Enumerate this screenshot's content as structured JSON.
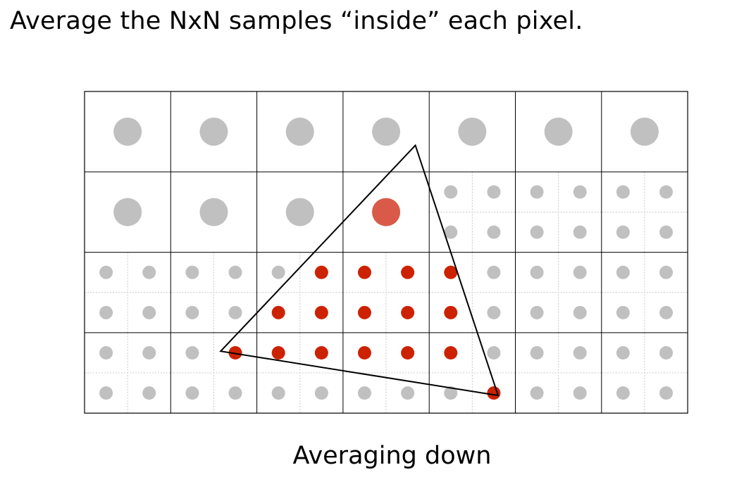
{
  "heading": "Average the NxN samples “inside” each pixel.",
  "caption": "Averaging down",
  "grid": {
    "cols": 7,
    "rows": 4
  },
  "colors": {
    "sample_outside": "#c0c0c0",
    "sample_inside": "#cc2200",
    "pixel_averaged_partial": "#d95a48",
    "grid_line": "#000000",
    "subgrid_line": "#c8c8c8",
    "triangle_edge": "#000000"
  },
  "pixels": [
    {
      "row": 0,
      "col": 0,
      "state": "averaged",
      "coverage": 0
    },
    {
      "row": 0,
      "col": 1,
      "state": "averaged",
      "coverage": 0
    },
    {
      "row": 0,
      "col": 2,
      "state": "averaged",
      "coverage": 0
    },
    {
      "row": 0,
      "col": 3,
      "state": "averaged",
      "coverage": 0
    },
    {
      "row": 0,
      "col": 4,
      "state": "averaged",
      "coverage": 0
    },
    {
      "row": 0,
      "col": 5,
      "state": "averaged",
      "coverage": 0
    },
    {
      "row": 0,
      "col": 6,
      "state": "averaged",
      "coverage": 0
    },
    {
      "row": 1,
      "col": 0,
      "state": "averaged",
      "coverage": 0
    },
    {
      "row": 1,
      "col": 1,
      "state": "averaged",
      "coverage": 0
    },
    {
      "row": 1,
      "col": 2,
      "state": "averaged",
      "coverage": 0
    },
    {
      "row": 1,
      "col": 3,
      "state": "averaged",
      "coverage": 0.5
    },
    {
      "row": 1,
      "col": 4,
      "state": "samples",
      "samples": [
        0,
        0,
        0,
        0
      ]
    },
    {
      "row": 1,
      "col": 5,
      "state": "samples",
      "samples": [
        0,
        0,
        0,
        0
      ]
    },
    {
      "row": 1,
      "col": 6,
      "state": "samples",
      "samples": [
        0,
        0,
        0,
        0
      ]
    },
    {
      "row": 2,
      "col": 0,
      "state": "samples",
      "samples": [
        0,
        0,
        0,
        0
      ]
    },
    {
      "row": 2,
      "col": 1,
      "state": "samples",
      "samples": [
        0,
        0,
        0,
        0
      ]
    },
    {
      "row": 2,
      "col": 2,
      "state": "samples",
      "samples": [
        0,
        1,
        1,
        1
      ]
    },
    {
      "row": 2,
      "col": 3,
      "state": "samples",
      "samples": [
        1,
        1,
        1,
        1
      ]
    },
    {
      "row": 2,
      "col": 4,
      "state": "samples",
      "samples": [
        1,
        0,
        1,
        0
      ]
    },
    {
      "row": 2,
      "col": 5,
      "state": "samples",
      "samples": [
        0,
        0,
        0,
        0
      ]
    },
    {
      "row": 2,
      "col": 6,
      "state": "samples",
      "samples": [
        0,
        0,
        0,
        0
      ]
    },
    {
      "row": 3,
      "col": 0,
      "state": "samples",
      "samples": [
        0,
        0,
        0,
        0
      ]
    },
    {
      "row": 3,
      "col": 1,
      "state": "samples",
      "samples": [
        0,
        1,
        0,
        0
      ]
    },
    {
      "row": 3,
      "col": 2,
      "state": "samples",
      "samples": [
        1,
        1,
        0,
        0
      ]
    },
    {
      "row": 3,
      "col": 3,
      "state": "samples",
      "samples": [
        1,
        1,
        0,
        0
      ]
    },
    {
      "row": 3,
      "col": 4,
      "state": "samples",
      "samples": [
        1,
        0,
        0,
        1
      ]
    },
    {
      "row": 3,
      "col": 5,
      "state": "samples",
      "samples": [
        0,
        0,
        0,
        0
      ]
    },
    {
      "row": 3,
      "col": 6,
      "state": "samples",
      "samples": [
        0,
        0,
        0,
        0
      ]
    }
  ],
  "triangle": {
    "vertices_in_pixel_units": [
      [
        3.84,
        0.67
      ],
      [
        1.58,
        3.23
      ],
      [
        4.8,
        3.78
      ]
    ]
  }
}
